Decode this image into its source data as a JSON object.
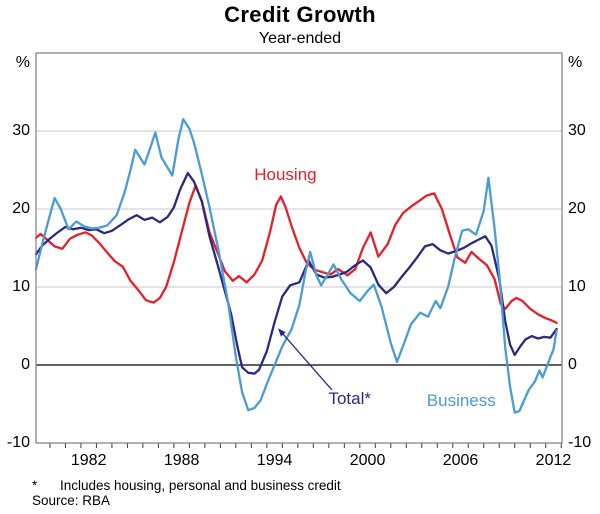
{
  "header": {
    "title": "Credit Growth",
    "subtitle": "Year-ended"
  },
  "footnotes": {
    "marker": "*",
    "footnote": "Includes housing, personal and business credit",
    "source": "Source: RBA"
  },
  "chart_data": {
    "type": "line",
    "title": "Credit Growth",
    "subtitle": "Year-ended",
    "ylabel_left": "%",
    "ylabel_right": "%",
    "xlim": [
      1979.1,
      2013.05
    ],
    "ylim": [
      -10,
      40
    ],
    "grid": true,
    "gridlines": [
      10,
      20,
      30
    ],
    "zero_line": 0,
    "x_tick_start": 1980,
    "x_tick_end": 2013,
    "x_labels": [
      1982,
      1988,
      1994,
      2000,
      2006,
      2012
    ],
    "y_ticks": [
      {
        "label": "%",
        "value": 38.7
      },
      {
        "label": "30",
        "value": 30
      },
      {
        "label": "20",
        "value": 20
      },
      {
        "label": "10",
        "value": 10
      },
      {
        "label": "0",
        "value": 0
      },
      {
        "label": "-10",
        "value": -10
      }
    ],
    "colors": {
      "grid": "#c9c9c9",
      "zero_line": "#000000",
      "frame": "#7f7f7f",
      "tick": "#3a3a3a",
      "housing": "#e42129",
      "total": "#2c2a80",
      "business": "#4b9cd3"
    },
    "series": [
      {
        "name": "Housing",
        "color": "#e42129",
        "points": [
          [
            1979.1,
            16.3
          ],
          [
            1979.4,
            16.8
          ],
          [
            1979.8,
            16.1
          ],
          [
            1980.3,
            15.2
          ],
          [
            1980.8,
            14.9
          ],
          [
            1981.3,
            16.2
          ],
          [
            1981.8,
            16.7
          ],
          [
            1982.3,
            17.0
          ],
          [
            1982.7,
            16.6
          ],
          [
            1983.2,
            15.6
          ],
          [
            1983.7,
            14.4
          ],
          [
            1984.2,
            13.3
          ],
          [
            1984.7,
            12.6
          ],
          [
            1985.2,
            10.8
          ],
          [
            1985.7,
            9.6
          ],
          [
            1986.2,
            8.3
          ],
          [
            1986.7,
            8.0
          ],
          [
            1987.1,
            8.6
          ],
          [
            1987.5,
            10.0
          ],
          [
            1988.0,
            13.2
          ],
          [
            1988.5,
            17.0
          ],
          [
            1989.0,
            20.8
          ],
          [
            1989.4,
            23.0
          ],
          [
            1989.8,
            21.0
          ],
          [
            1990.3,
            17.0
          ],
          [
            1990.8,
            14.5
          ],
          [
            1991.3,
            12.0
          ],
          [
            1991.8,
            10.8
          ],
          [
            1992.2,
            11.4
          ],
          [
            1992.7,
            10.6
          ],
          [
            1993.2,
            11.6
          ],
          [
            1993.7,
            13.4
          ],
          [
            1994.2,
            17.0
          ],
          [
            1994.6,
            20.5
          ],
          [
            1994.9,
            21.6
          ],
          [
            1995.2,
            20.3
          ],
          [
            1995.6,
            17.8
          ],
          [
            1996.1,
            15.0
          ],
          [
            1996.6,
            13.0
          ],
          [
            1997.1,
            12.2
          ],
          [
            1997.6,
            11.9
          ],
          [
            1998.1,
            11.6
          ],
          [
            1998.6,
            12.3
          ],
          [
            1999.2,
            11.5
          ],
          [
            1999.7,
            12.3
          ],
          [
            2000.2,
            15.0
          ],
          [
            2000.7,
            17.0
          ],
          [
            2001.2,
            13.9
          ],
          [
            2001.8,
            15.5
          ],
          [
            2002.3,
            18.0
          ],
          [
            2002.8,
            19.5
          ],
          [
            2003.3,
            20.3
          ],
          [
            2003.8,
            21.0
          ],
          [
            2004.3,
            21.7
          ],
          [
            2004.8,
            22.0
          ],
          [
            2005.3,
            20.0
          ],
          [
            2005.8,
            16.8
          ],
          [
            2006.3,
            13.8
          ],
          [
            2006.8,
            13.1
          ],
          [
            2007.2,
            14.5
          ],
          [
            2007.7,
            13.6
          ],
          [
            2008.2,
            12.8
          ],
          [
            2008.7,
            11.0
          ],
          [
            2009.1,
            7.8
          ],
          [
            2009.4,
            7.2
          ],
          [
            2009.8,
            8.2
          ],
          [
            2010.1,
            8.6
          ],
          [
            2010.5,
            8.2
          ],
          [
            2011.0,
            7.2
          ],
          [
            2011.5,
            6.5
          ],
          [
            2012.0,
            6.0
          ],
          [
            2012.4,
            5.7
          ],
          [
            2012.7,
            5.4
          ]
        ]
      },
      {
        "name": "Total*",
        "color": "#2c2a80",
        "points": [
          [
            1979.1,
            14.2
          ],
          [
            1979.5,
            15.3
          ],
          [
            1980.0,
            16.2
          ],
          [
            1980.5,
            17.0
          ],
          [
            1981.0,
            17.7
          ],
          [
            1981.5,
            17.4
          ],
          [
            1982.0,
            17.6
          ],
          [
            1982.5,
            17.3
          ],
          [
            1983.0,
            17.4
          ],
          [
            1983.5,
            16.9
          ],
          [
            1984.0,
            17.2
          ],
          [
            1984.6,
            18.0
          ],
          [
            1985.1,
            18.7
          ],
          [
            1985.6,
            19.2
          ],
          [
            1986.1,
            18.6
          ],
          [
            1986.6,
            18.9
          ],
          [
            1987.1,
            18.3
          ],
          [
            1987.6,
            19.0
          ],
          [
            1988.0,
            20.2
          ],
          [
            1988.4,
            22.5
          ],
          [
            1988.9,
            24.6
          ],
          [
            1989.3,
            23.5
          ],
          [
            1989.8,
            21.0
          ],
          [
            1990.3,
            16.5
          ],
          [
            1990.8,
            13.0
          ],
          [
            1991.2,
            10.1
          ],
          [
            1991.7,
            6.5
          ],
          [
            1992.1,
            2.4
          ],
          [
            1992.4,
            -0.3
          ],
          [
            1992.8,
            -1.0
          ],
          [
            1993.2,
            -1.1
          ],
          [
            1993.5,
            -0.6
          ],
          [
            1994.0,
            1.8
          ],
          [
            1994.5,
            5.5
          ],
          [
            1995.0,
            8.8
          ],
          [
            1995.5,
            10.2
          ],
          [
            1996.1,
            10.6
          ],
          [
            1996.7,
            13.4
          ],
          [
            1997.2,
            11.6
          ],
          [
            1997.7,
            11.2
          ],
          [
            1998.2,
            11.3
          ],
          [
            1998.7,
            11.6
          ],
          [
            1999.2,
            12.0
          ],
          [
            1999.7,
            12.8
          ],
          [
            2000.2,
            13.4
          ],
          [
            2000.7,
            12.5
          ],
          [
            2001.2,
            10.3
          ],
          [
            2001.7,
            9.2
          ],
          [
            2002.2,
            10.0
          ],
          [
            2002.7,
            11.3
          ],
          [
            2003.2,
            12.5
          ],
          [
            2003.7,
            13.8
          ],
          [
            2004.2,
            15.2
          ],
          [
            2004.7,
            15.5
          ],
          [
            2005.2,
            14.7
          ],
          [
            2005.7,
            14.3
          ],
          [
            2006.2,
            14.6
          ],
          [
            2006.7,
            15.0
          ],
          [
            2007.2,
            15.6
          ],
          [
            2007.7,
            16.1
          ],
          [
            2008.1,
            16.5
          ],
          [
            2008.5,
            15.3
          ],
          [
            2009.0,
            11.0
          ],
          [
            2009.4,
            5.5
          ],
          [
            2009.7,
            2.6
          ],
          [
            2010.0,
            1.3
          ],
          [
            2010.4,
            2.5
          ],
          [
            2010.7,
            3.3
          ],
          [
            2011.1,
            3.7
          ],
          [
            2011.5,
            3.4
          ],
          [
            2011.9,
            3.6
          ],
          [
            2012.3,
            3.5
          ],
          [
            2012.7,
            4.6
          ]
        ]
      },
      {
        "name": "Business",
        "color": "#4b9cd3",
        "points": [
          [
            1979.1,
            12.3
          ],
          [
            1979.5,
            15.5
          ],
          [
            1979.9,
            18.5
          ],
          [
            1980.3,
            21.4
          ],
          [
            1980.7,
            20.0
          ],
          [
            1981.2,
            17.4
          ],
          [
            1981.7,
            18.4
          ],
          [
            1982.2,
            17.8
          ],
          [
            1982.7,
            17.5
          ],
          [
            1983.2,
            17.6
          ],
          [
            1983.7,
            17.9
          ],
          [
            1984.3,
            19.2
          ],
          [
            1984.8,
            22.0
          ],
          [
            1985.2,
            25.0
          ],
          [
            1985.5,
            27.6
          ],
          [
            1986.1,
            25.7
          ],
          [
            1986.5,
            28.0
          ],
          [
            1986.8,
            29.8
          ],
          [
            1987.2,
            26.6
          ],
          [
            1987.9,
            24.3
          ],
          [
            1988.3,
            29.0
          ],
          [
            1988.6,
            31.5
          ],
          [
            1989.0,
            30.3
          ],
          [
            1989.3,
            28.5
          ],
          [
            1989.8,
            24.5
          ],
          [
            1990.3,
            20.2
          ],
          [
            1990.9,
            14.5
          ],
          [
            1991.5,
            8.0
          ],
          [
            1992.0,
            1.0
          ],
          [
            1992.4,
            -3.5
          ],
          [
            1992.8,
            -5.8
          ],
          [
            1993.2,
            -5.5
          ],
          [
            1993.6,
            -4.5
          ],
          [
            1994.0,
            -2.4
          ],
          [
            1994.5,
            0.0
          ],
          [
            1995.0,
            2.4
          ],
          [
            1995.6,
            4.6
          ],
          [
            1996.1,
            7.7
          ],
          [
            1996.5,
            12.0
          ],
          [
            1996.8,
            14.5
          ],
          [
            1997.2,
            11.5
          ],
          [
            1997.5,
            10.2
          ],
          [
            1997.9,
            11.5
          ],
          [
            1998.3,
            12.9
          ],
          [
            1998.8,
            11.0
          ],
          [
            1999.4,
            9.2
          ],
          [
            2000.0,
            8.2
          ],
          [
            2000.5,
            9.5
          ],
          [
            2000.9,
            10.3
          ],
          [
            2001.4,
            7.5
          ],
          [
            2002.0,
            2.8
          ],
          [
            2002.4,
            0.4
          ],
          [
            2002.9,
            3.0
          ],
          [
            2003.3,
            5.2
          ],
          [
            2003.9,
            6.7
          ],
          [
            2004.4,
            6.2
          ],
          [
            2004.9,
            8.2
          ],
          [
            2005.2,
            7.3
          ],
          [
            2005.7,
            10.0
          ],
          [
            2006.1,
            13.5
          ],
          [
            2006.6,
            17.2
          ],
          [
            2007.0,
            17.4
          ],
          [
            2007.5,
            16.7
          ],
          [
            2008.0,
            19.8
          ],
          [
            2008.3,
            24.0
          ],
          [
            2008.7,
            17.5
          ],
          [
            2009.0,
            11.5
          ],
          [
            2009.4,
            2.0
          ],
          [
            2009.7,
            -2.8
          ],
          [
            2010.0,
            -6.1
          ],
          [
            2010.3,
            -5.9
          ],
          [
            2010.9,
            -3.2
          ],
          [
            2011.3,
            -2.1
          ],
          [
            2011.6,
            -0.7
          ],
          [
            2011.8,
            -1.6
          ],
          [
            2012.2,
            0.5
          ],
          [
            2012.5,
            2.0
          ],
          [
            2012.7,
            4.4
          ]
        ]
      }
    ],
    "labels": [
      {
        "text": "Housing",
        "color": "#e42129",
        "t": 1995.2,
        "v": 24.3
      },
      {
        "text": "Total*",
        "color": "#2c2a80",
        "t": 1999.35,
        "v": -4.3
      },
      {
        "text": "Business",
        "color": "#4b9cd3",
        "t": 2006.55,
        "v": -4.6
      }
    ],
    "arrow": {
      "from_t": 1998.2,
      "from_v": -3.2,
      "to_t": 1994.72,
      "to_v": 4.7,
      "color": "#2c2a80"
    },
    "legend_position": "inline-labels"
  }
}
